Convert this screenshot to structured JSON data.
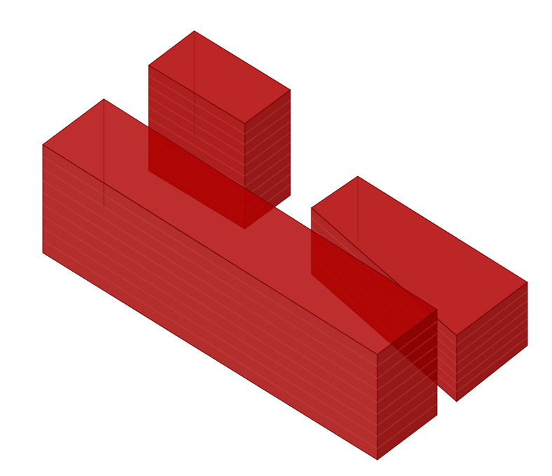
{
  "colors": {
    "background": "#ffffff",
    "top_face": "#b00000",
    "left_face": "#a30000",
    "right_face": "#8a0000",
    "edge": "#6e0000",
    "floor_line": "#d35a5a"
  },
  "model": {
    "type": "isometric-massing-model",
    "blocks": [
      {
        "name": "main-slab",
        "floors": 9
      },
      {
        "name": "tower",
        "floors": 10
      },
      {
        "name": "side-slab",
        "floors": 7
      }
    ]
  }
}
